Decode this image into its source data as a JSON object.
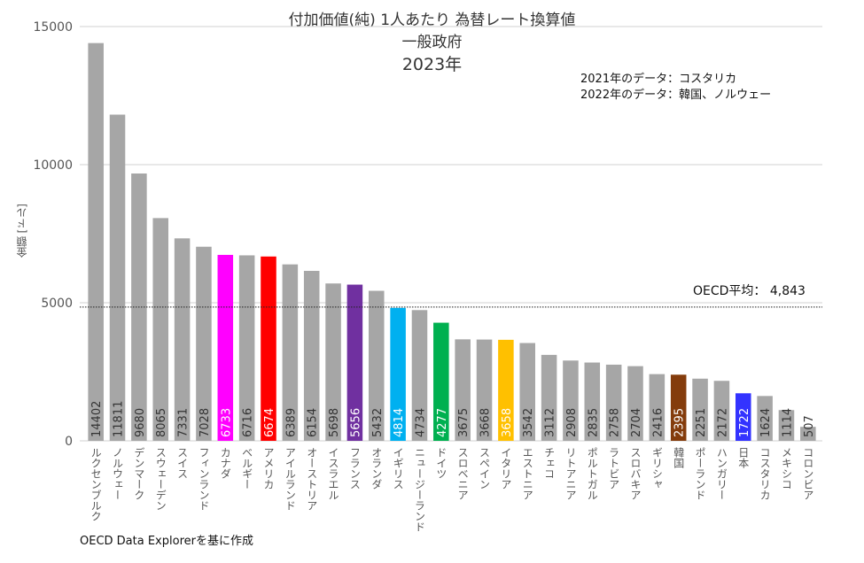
{
  "chart_data": {
    "type": "bar",
    "title": "付加価値(純) 1人あたり 為替レート換算値",
    "subtitle": "一般政府",
    "year": "2023年",
    "ylabel": "金額 [ドル]",
    "xlabel": "",
    "ylim": [
      0,
      15000
    ],
    "yticks": [
      0,
      5000,
      10000,
      15000
    ],
    "grid": true,
    "notes": [
      "2021年のデータ：コスタリカ",
      "2022年のデータ：韓国、ノルウェー"
    ],
    "reference_line": {
      "label": "OECD平均： 4,843",
      "value": 4843
    },
    "source": "OECD Data Explorerを基に作成",
    "categories": [
      "ルクセンブルク",
      "ノルウェー",
      "デンマーク",
      "スウェーデン",
      "スイス",
      "フィンランド",
      "カナダ",
      "ベルギー",
      "アメリカ",
      "アイルランド",
      "オーストリア",
      "イスラエル",
      "フランス",
      "オランダ",
      "イギリス",
      "ニュージーランド",
      "ドイツ",
      "スロベニア",
      "スペイン",
      "イタリア",
      "エストニア",
      "チェコ",
      "リトアニア",
      "ポルトガル",
      "ラトビア",
      "スロバキア",
      "ギリシャ",
      "韓国",
      "ポーランド",
      "ハンガリー",
      "日本",
      "コスタリカ",
      "メキシコ",
      "コロンビア"
    ],
    "values": [
      14402,
      11811,
      9680,
      8065,
      7331,
      7028,
      6733,
      6716,
      6674,
      6389,
      6154,
      5698,
      5656,
      5432,
      4814,
      4734,
      4277,
      3675,
      3668,
      3658,
      3542,
      3112,
      2908,
      2835,
      2758,
      2704,
      2416,
      2395,
      2251,
      2172,
      1722,
      1624,
      1114,
      507
    ],
    "default_color": "#a6a6a6",
    "highlight_colors": {
      "カナダ": "#ff00ff",
      "アメリカ": "#ff0000",
      "フランス": "#7030a0",
      "イギリス": "#00b0f0",
      "ドイツ": "#00b050",
      "イタリア": "#ffc000",
      "韓国": "#843c0c",
      "日本": "#3333ff"
    }
  }
}
